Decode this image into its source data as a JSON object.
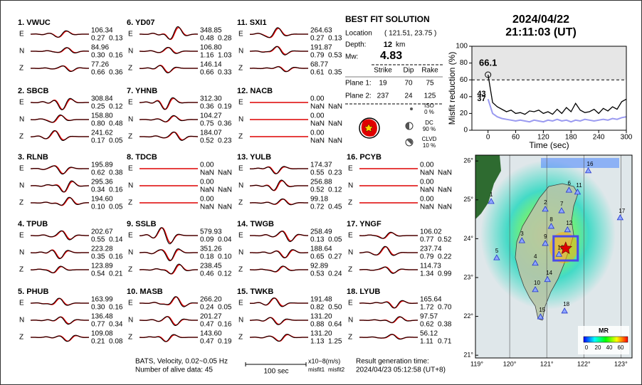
{
  "header": {
    "date": "2024/04/22",
    "time": "21:11:03  (UT)"
  },
  "components": [
    "E",
    "N",
    "Z"
  ],
  "stations": [
    {
      "label": "1.  VWUC",
      "traces": [
        [
          "106.34",
          "0.27",
          "0.13"
        ],
        [
          "84.96",
          "0.30",
          "0.16"
        ],
        [
          "77.26",
          "0.66",
          "0.36"
        ]
      ]
    },
    {
      "label": "2.  SBCB",
      "traces": [
        [
          "308.84",
          "0.25",
          "0.12"
        ],
        [
          "158.80",
          "0.80",
          "0.48"
        ],
        [
          "241.62",
          "0.17",
          "0.05"
        ]
      ]
    },
    {
      "label": "3.  RLNB",
      "traces": [
        [
          "195.89",
          "0.62",
          "0.38"
        ],
        [
          "295.36",
          "0.34",
          "0.16"
        ],
        [
          "194.60",
          "0.10",
          "0.05"
        ]
      ]
    },
    {
      "label": "4.  TPUB",
      "traces": [
        [
          "202.67",
          "0.55",
          "0.14"
        ],
        [
          "223.28",
          "0.35",
          "0.16"
        ],
        [
          "123.89",
          "0.54",
          "0.21"
        ]
      ]
    },
    {
      "label": "5.  PHUB",
      "traces": [
        [
          "163.99",
          "0.30",
          "0.16"
        ],
        [
          "136.48",
          "0.77",
          "0.34"
        ],
        [
          "109.08",
          "0.21",
          "0.08"
        ]
      ]
    },
    {
      "label": "6.  YD07",
      "traces": [
        [
          "348.85",
          "0.48",
          "0.28"
        ],
        [
          "106.80",
          "1.16",
          "1.03"
        ],
        [
          "146.14",
          "0.66",
          "0.33"
        ]
      ]
    },
    {
      "label": "7.  YHNB",
      "traces": [
        [
          "312.30",
          "0.36",
          "0.19"
        ],
        [
          "104.27",
          "0.75",
          "0.36"
        ],
        [
          "184.07",
          "0.52",
          "0.23"
        ]
      ]
    },
    {
      "label": "8.  TDCB",
      "traces": [
        [
          "0.00",
          "NaN",
          "NaN"
        ],
        [
          "0.00",
          "NaN",
          "NaN"
        ],
        [
          "0.00",
          "NaN",
          "NaN"
        ]
      ]
    },
    {
      "label": "9.  SSLB",
      "traces": [
        [
          "579.93",
          "0.09",
          "0.04"
        ],
        [
          "351.26",
          "0.18",
          "0.10"
        ],
        [
          "238.45",
          "0.46",
          "0.12"
        ]
      ]
    },
    {
      "label": "10.  MASB",
      "traces": [
        [
          "266.20",
          "0.24",
          "0.05"
        ],
        [
          "201.27",
          "0.47",
          "0.16"
        ],
        [
          "143.60",
          "0.47",
          "0.19"
        ]
      ]
    },
    {
      "label": "11.  SXI1",
      "traces": [
        [
          "264.63",
          "0.27",
          "0.13"
        ],
        [
          "191.87",
          "0.79",
          "0.53"
        ],
        [
          "68.77",
          "0.61",
          "0.35"
        ]
      ]
    },
    {
      "label": "12.  NACB",
      "traces": [
        [
          "0.00",
          "NaN",
          "NaN"
        ],
        [
          "0.00",
          "NaN",
          "NaN"
        ],
        [
          "0.00",
          "NaN",
          "NaN"
        ]
      ]
    },
    {
      "label": "13.  YULB",
      "traces": [
        [
          "174.37",
          "0.55",
          "0.23"
        ],
        [
          "256.88",
          "0.52",
          "0.12"
        ],
        [
          "99.18",
          "0.72",
          "0.45"
        ]
      ]
    },
    {
      "label": "14.  TWGB",
      "traces": [
        [
          "258.49",
          "0.13",
          "0.05"
        ],
        [
          "188.64",
          "0.65",
          "0.27"
        ],
        [
          "92.89",
          "0.53",
          "0.24"
        ]
      ]
    },
    {
      "label": "15.  TWKB",
      "traces": [
        [
          "191.48",
          "0.82",
          "0.50"
        ],
        [
          "131.20",
          "0.88",
          "0.64"
        ],
        [
          "131.20",
          "1.13",
          "1.25"
        ]
      ]
    },
    {
      "label": "16.  PCYB",
      "traces": [
        [
          "0.00",
          "NaN",
          "NaN"
        ],
        [
          "0.00",
          "NaN",
          "NaN"
        ],
        [
          "0.00",
          "NaN",
          "NaN"
        ]
      ]
    },
    {
      "label": "17.  YNGF",
      "traces": [
        [
          "106.02",
          "0.77",
          "0.52"
        ],
        [
          "237.74",
          "0.79",
          "0.22"
        ],
        [
          "114.73",
          "1.34",
          "0.99"
        ]
      ]
    },
    {
      "label": "18.  LYUB",
      "traces": [
        [
          "165.64",
          "1.72",
          "0.70"
        ],
        [
          "97.57",
          "0.62",
          "0.38"
        ],
        [
          "56.12",
          "1.11",
          "0.71"
        ]
      ]
    }
  ],
  "solution": {
    "title": "BEST FIT SOLUTION",
    "location_label": "Location",
    "location": "( 121.51, 23.75 )",
    "depth_label": "Depth:",
    "depth": "12",
    "depth_unit": "km",
    "mw_label": "Mw:",
    "mw": "4.83",
    "columns": [
      "Strike",
      "Dip",
      "Rake"
    ],
    "planes": [
      {
        "label": "Plane 1:",
        "values": [
          "19",
          "70",
          "75"
        ]
      },
      {
        "label": "Plane 2:",
        "values": [
          "237",
          "24",
          "125"
        ]
      }
    ],
    "iso": {
      "label": "ISO",
      "value": "0 %"
    },
    "dc": {
      "label": "DC",
      "value": "90 %"
    },
    "clvd": {
      "label": "CLVD",
      "value": "10 %"
    }
  },
  "footer": {
    "source": "BATS, Velocity, 0.02~0.05 Hz",
    "alive": "Number of alive data: 45",
    "scale": "100 sec",
    "unit": "x10−8(m/s)",
    "misfit1": "misfit1",
    "misfit2": "misfit2",
    "result_label": "Result generation time:",
    "result_time": "2024/04/23 05:12:58 (UT+8)"
  },
  "chart_data": {
    "type": "line",
    "xlabel": "Time (sec)",
    "ylabel": "Misfit reduction (%)",
    "xlim": [
      -35,
      300
    ],
    "ylim": [
      0,
      100
    ],
    "xticks": [
      0,
      60,
      120,
      180,
      240,
      300
    ],
    "yticks": [
      0,
      20,
      40,
      60,
      80,
      100
    ],
    "threshold": 60,
    "x": [
      0,
      10,
      20,
      30,
      40,
      50,
      60,
      70,
      80,
      90,
      100,
      110,
      120,
      130,
      140,
      150,
      160,
      170,
      180,
      190,
      200,
      210,
      220,
      230,
      240,
      250,
      260,
      270,
      280,
      290,
      300
    ],
    "series": [
      {
        "color": "#000000",
        "values": [
          66.1,
          33,
          28,
          25,
          22,
          24,
          20,
          21,
          19,
          23,
          22,
          24,
          20,
          22,
          19,
          25,
          20,
          27,
          22,
          32,
          24,
          21,
          22,
          25,
          20,
          26,
          23,
          28,
          25,
          34,
          37
        ]
      },
      {
        "color": "#9a9af0",
        "values": [
          37,
          20,
          16,
          14,
          13,
          12,
          11,
          12,
          11,
          10,
          12,
          11,
          10,
          12,
          11,
          13,
          11,
          12,
          10,
          12,
          11,
          13,
          12,
          11,
          12,
          13,
          12,
          14,
          13,
          15,
          16
        ]
      }
    ],
    "annotations": [
      {
        "x": 0,
        "y": 66.1,
        "color": "#e02020"
      },
      {
        "x": 0,
        "y": 43,
        "color": "#aaaaaa"
      },
      {
        "x": 0,
        "y": 37,
        "color": "#9a9af0"
      }
    ]
  },
  "map": {
    "xlim": [
      119,
      123.3
    ],
    "ylim": [
      20.93,
      26.15
    ],
    "xticks": [
      {
        "value": 119,
        "label": "119°"
      },
      {
        "value": 120,
        "label": "120°"
      },
      {
        "value": 121,
        "label": "121°"
      },
      {
        "value": 122,
        "label": "122°"
      },
      {
        "value": 123,
        "label": "123°"
      }
    ],
    "yticks": [
      {
        "value": 21,
        "label": "21°"
      },
      {
        "value": 22,
        "label": "22°"
      },
      {
        "value": 23,
        "label": "23°"
      },
      {
        "value": 24,
        "label": "24°"
      },
      {
        "value": 25,
        "label": "25°"
      },
      {
        "value": 26,
        "label": "26°"
      }
    ],
    "epicenter": {
      "lon": 121.51,
      "lat": 23.75
    },
    "stations": [
      {
        "label": "1",
        "lon": 119.5,
        "lat": 24.96
      },
      {
        "label": "2",
        "lon": 120.96,
        "lat": 24.76
      },
      {
        "label": "3",
        "lon": 120.33,
        "lat": 23.95
      },
      {
        "label": "4",
        "lon": 120.69,
        "lat": 23.37
      },
      {
        "label": "5",
        "lon": 119.65,
        "lat": 23.51
      },
      {
        "label": "6",
        "lon": 121.6,
        "lat": 25.25
      },
      {
        "label": "7",
        "lon": 121.4,
        "lat": 24.72
      },
      {
        "label": "8",
        "lon": 121.12,
        "lat": 24.32
      },
      {
        "label": "9",
        "lon": 120.96,
        "lat": 23.88
      },
      {
        "label": "10",
        "lon": 120.69,
        "lat": 22.69
      },
      {
        "label": "11",
        "lon": 121.83,
        "lat": 25.2
      },
      {
        "label": "12",
        "lon": 121.56,
        "lat": 24.23
      },
      {
        "label": "13",
        "lon": 121.33,
        "lat": 23.6
      },
      {
        "label": "14",
        "lon": 121.02,
        "lat": 22.95
      },
      {
        "label": "15",
        "lon": 120.83,
        "lat": 21.99
      },
      {
        "label": "16",
        "lon": 122.12,
        "lat": 25.75
      },
      {
        "label": "17",
        "lon": 122.98,
        "lat": 24.54
      },
      {
        "label": "18",
        "lon": 121.48,
        "lat": 22.14
      }
    ],
    "colorbar": {
      "title": "MR",
      "ticks": [
        "0",
        "20",
        "40",
        "60"
      ]
    }
  }
}
